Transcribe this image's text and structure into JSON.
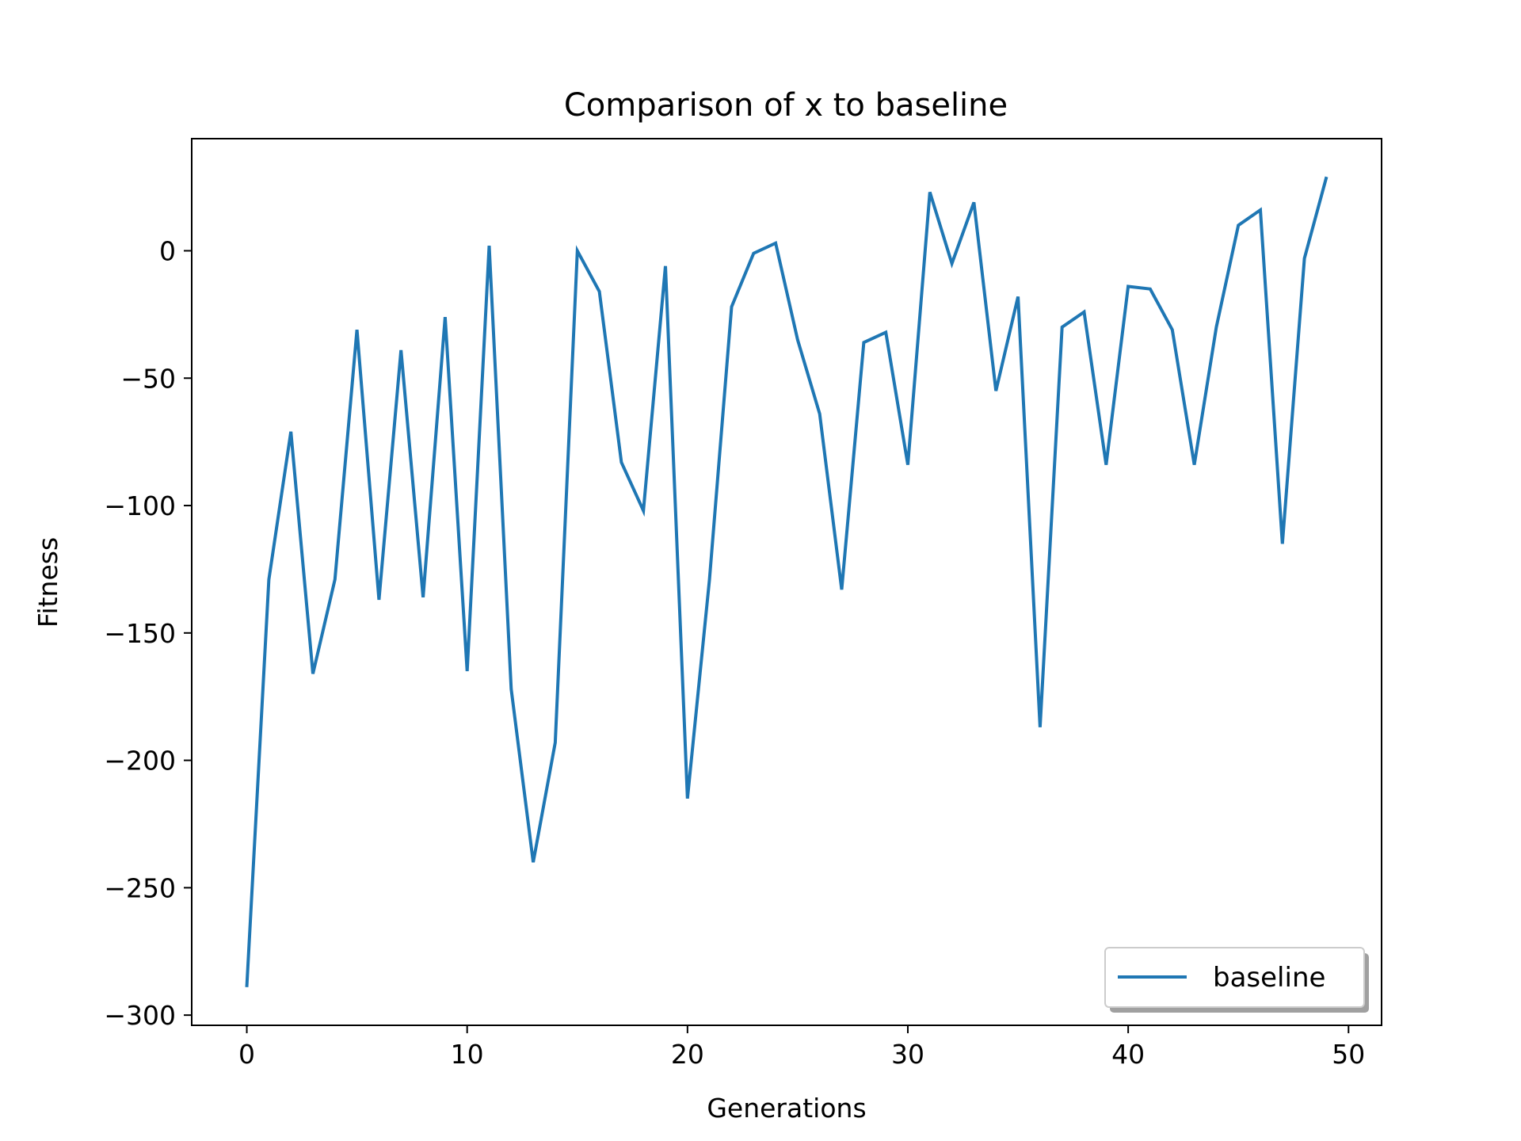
{
  "chart_data": {
    "type": "line",
    "title": "Comparison of x to baseline",
    "xlabel": "Generations",
    "ylabel": "Fitness",
    "xlim": [
      -2.5,
      51.5
    ],
    "ylim": [
      -304,
      44
    ],
    "xticks": [
      0,
      10,
      20,
      30,
      40,
      50
    ],
    "yticks": [
      -300,
      -250,
      -200,
      -150,
      -100,
      -50,
      0
    ],
    "grid": false,
    "legend_position": "lower right",
    "series": [
      {
        "name": "baseline",
        "color": "#1f77b4",
        "x": [
          0,
          1,
          2,
          3,
          4,
          5,
          6,
          7,
          8,
          9,
          10,
          11,
          12,
          13,
          14,
          15,
          16,
          17,
          18,
          19,
          20,
          21,
          22,
          23,
          24,
          25,
          26,
          27,
          28,
          29,
          30,
          31,
          32,
          33,
          34,
          35,
          36,
          37,
          38,
          39,
          40,
          41,
          42,
          43,
          44,
          45,
          46,
          47,
          48,
          49
        ],
        "y": [
          -289,
          -129,
          -71,
          -166,
          -129,
          -31,
          -137,
          -39,
          -136,
          -26,
          -165,
          2,
          -172,
          -240,
          -193,
          0,
          -16,
          -83,
          -102,
          -6,
          -215,
          -129,
          -22,
          -1,
          3,
          -35,
          -64,
          -133,
          -36,
          -32,
          -84,
          23,
          -5,
          19,
          -55,
          -18,
          -187,
          -30,
          -24,
          -84,
          -14,
          -15,
          -31,
          -84,
          -30,
          10,
          16,
          -115,
          -3,
          29
        ]
      }
    ]
  }
}
